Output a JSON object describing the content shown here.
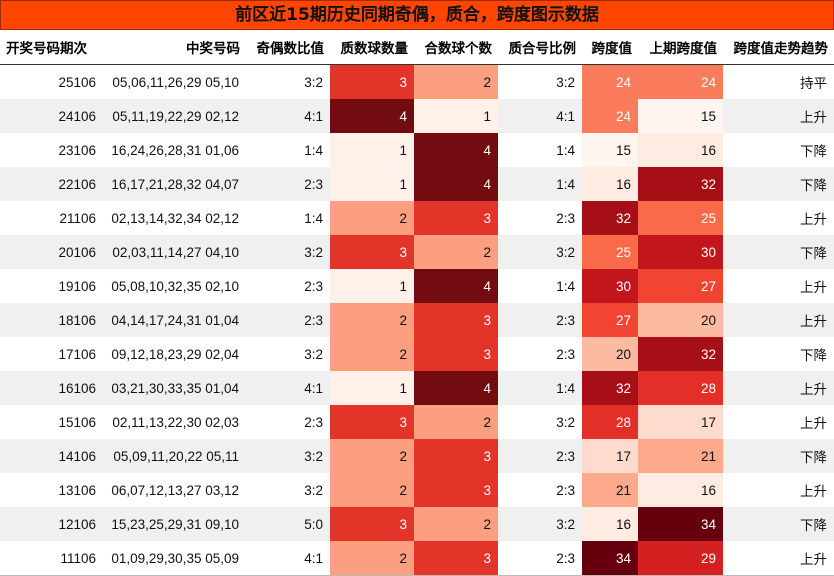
{
  "title": "前区近15期历史同期奇偶，质合，跨度图示数据",
  "headers": [
    "开奖号码期次",
    "中奖号码",
    "奇偶数比值",
    "质数球数量",
    "合数球个数",
    "质合号比例",
    "跨度值",
    "上期跨度值",
    "跨度值走势趋势"
  ],
  "rows": [
    {
      "period": "25106",
      "numbers": "05,06,11,26,29 05,10",
      "odd_even": "3:2",
      "prime_count": 3,
      "composite_count": 2,
      "prime_ratio": "3:2",
      "span": 24,
      "prev_span": 24,
      "trend": "持平"
    },
    {
      "period": "24106",
      "numbers": "05,11,19,22,29 02,12",
      "odd_even": "4:1",
      "prime_count": 4,
      "composite_count": 1,
      "prime_ratio": "4:1",
      "span": 24,
      "prev_span": 15,
      "trend": "上升"
    },
    {
      "period": "23106",
      "numbers": "16,24,26,28,31 01,06",
      "odd_even": "1:4",
      "prime_count": 1,
      "composite_count": 4,
      "prime_ratio": "1:4",
      "span": 15,
      "prev_span": 16,
      "trend": "下降"
    },
    {
      "period": "22106",
      "numbers": "16,17,21,28,32 04,07",
      "odd_even": "2:3",
      "prime_count": 1,
      "composite_count": 4,
      "prime_ratio": "1:4",
      "span": 16,
      "prev_span": 32,
      "trend": "下降"
    },
    {
      "period": "21106",
      "numbers": "02,13,14,32,34 02,12",
      "odd_even": "1:4",
      "prime_count": 2,
      "composite_count": 3,
      "prime_ratio": "2:3",
      "span": 32,
      "prev_span": 25,
      "trend": "上升"
    },
    {
      "period": "20106",
      "numbers": "02,03,11,14,27 04,10",
      "odd_even": "3:2",
      "prime_count": 3,
      "composite_count": 2,
      "prime_ratio": "3:2",
      "span": 25,
      "prev_span": 30,
      "trend": "下降"
    },
    {
      "period": "19106",
      "numbers": "05,08,10,32,35 02,10",
      "odd_even": "2:3",
      "prime_count": 1,
      "composite_count": 4,
      "prime_ratio": "1:4",
      "span": 30,
      "prev_span": 27,
      "trend": "上升"
    },
    {
      "period": "18106",
      "numbers": "04,14,17,24,31 01,04",
      "odd_even": "2:3",
      "prime_count": 2,
      "composite_count": 3,
      "prime_ratio": "2:3",
      "span": 27,
      "prev_span": 20,
      "trend": "上升"
    },
    {
      "period": "17106",
      "numbers": "09,12,18,23,29 02,04",
      "odd_even": "3:2",
      "prime_count": 2,
      "composite_count": 3,
      "prime_ratio": "2:3",
      "span": 20,
      "prev_span": 32,
      "trend": "下降"
    },
    {
      "period": "16106",
      "numbers": "03,21,30,33,35 01,04",
      "odd_even": "4:1",
      "prime_count": 1,
      "composite_count": 4,
      "prime_ratio": "1:4",
      "span": 32,
      "prev_span": 28,
      "trend": "上升"
    },
    {
      "period": "15106",
      "numbers": "02,11,13,22,30 02,03",
      "odd_even": "2:3",
      "prime_count": 3,
      "composite_count": 2,
      "prime_ratio": "3:2",
      "span": 28,
      "prev_span": 17,
      "trend": "上升"
    },
    {
      "period": "14106",
      "numbers": "05,09,11,20,22 05,11",
      "odd_even": "3:2",
      "prime_count": 2,
      "composite_count": 3,
      "prime_ratio": "2:3",
      "span": 17,
      "prev_span": 21,
      "trend": "下降"
    },
    {
      "period": "13106",
      "numbers": "06,07,12,13,27 03,12",
      "odd_even": "3:2",
      "prime_count": 2,
      "composite_count": 3,
      "prime_ratio": "2:3",
      "span": 21,
      "prev_span": 16,
      "trend": "上升"
    },
    {
      "period": "12106",
      "numbers": "15,23,25,29,31 09,10",
      "odd_even": "5:0",
      "prime_count": 3,
      "composite_count": 2,
      "prime_ratio": "3:2",
      "span": 16,
      "prev_span": 34,
      "trend": "下降"
    },
    {
      "period": "11106",
      "numbers": "01,09,29,30,35 05,09",
      "odd_even": "4:1",
      "prime_count": 2,
      "composite_count": 3,
      "prime_ratio": "2:3",
      "span": 34,
      "prev_span": 29,
      "trend": "上升"
    }
  ],
  "colors": {
    "title_bg": "#ff4500",
    "count_scale": {
      "1": "#fff1ea",
      "2": "#fc9f80",
      "3": "#e3342a",
      "4": "#730c10"
    },
    "span_scale": {
      "15": "#fff5f0",
      "16": "#feebe2",
      "17": "#fedbcc",
      "20": "#fcbba1",
      "21": "#fca98c",
      "24": "#fb7c5c",
      "25": "#f86a4a",
      "27": "#f14432",
      "28": "#e32f27",
      "29": "#d42020",
      "30": "#c1161b",
      "32": "#a50f15",
      "34": "#67000d"
    }
  }
}
